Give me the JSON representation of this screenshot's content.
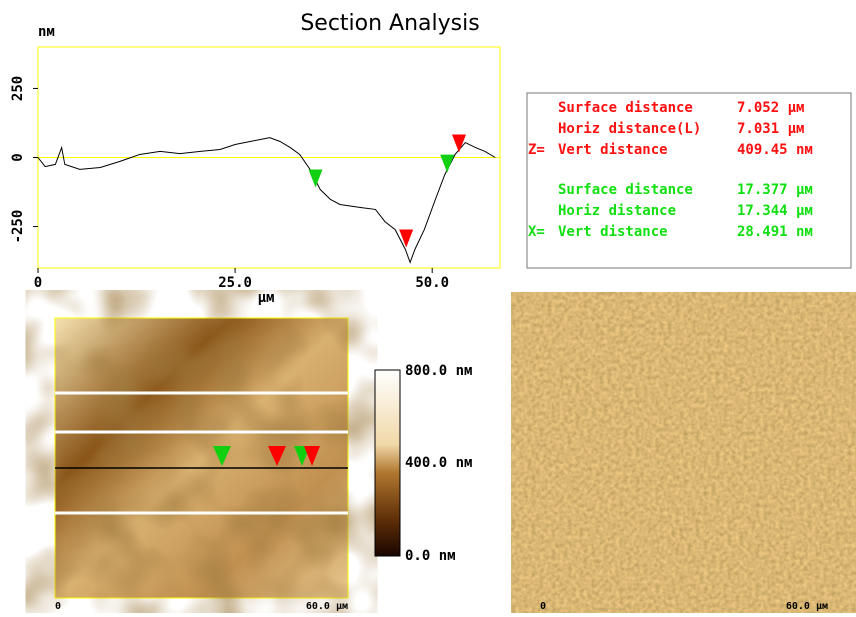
{
  "chart_data": {
    "type": "line",
    "title": "Section Analysis",
    "y_label": "nм",
    "x_label": "µм",
    "x": [
      0,
      0.9,
      2.2,
      3,
      3.4,
      5.3,
      7.9,
      10.4,
      12.9,
      15.5,
      18,
      20.6,
      23.1,
      25,
      26.9,
      28.2,
      29.4,
      30.7,
      32,
      33.2,
      34.5,
      35.8,
      37.1,
      38.3,
      40.9,
      42.8,
      44,
      45.3,
      46.6,
      47.2,
      47.8,
      49,
      50.4,
      51.6,
      52.9,
      54.2,
      55.5,
      56.7,
      58
    ],
    "series": [
      {
        "color": "#000000",
        "values": [
          0,
          -33,
          -25,
          36,
          -25,
          -43,
          -36,
          -14,
          11,
          22,
          14,
          22,
          29,
          47,
          58,
          65,
          72,
          58,
          36,
          11,
          -43,
          -116,
          -152,
          -170,
          -181,
          -188,
          -232,
          -261,
          -333,
          -380,
          -333,
          -261,
          -152,
          -62,
          11,
          54,
          36,
          22,
          0
        ]
      }
    ],
    "xlim": [
      0,
      58.6
    ],
    "ylim": [
      -400,
      400
    ],
    "xticks": [
      0,
      {
        "value": 25,
        "label": "25.0"
      },
      {
        "value": 50,
        "label": "50.0"
      }
    ],
    "yticks": [
      -250,
      0,
      250
    ],
    "zero_line_color": "#ffff00",
    "cursors": [
      {
        "color": "#10d010",
        "x": 35.2
      },
      {
        "color": "#ff0000",
        "x": 46.7
      },
      {
        "color": "#10d010",
        "x": 51.9
      },
      {
        "color": "#ff0000",
        "x": 53.4
      }
    ]
  },
  "measurements": {
    "z": {
      "prefix": "Z=",
      "rows": [
        [
          "Surface distance",
          "7.052 µм"
        ],
        [
          "Horiz distance(L)",
          "7.031 µм"
        ],
        [
          "Vert distance",
          "409.45 nм"
        ]
      ]
    },
    "x": {
      "prefix": "X=",
      "rows": [
        [
          "Surface distance",
          "17.377 µм"
        ],
        [
          "Horiz distance",
          "17.344 µм"
        ],
        [
          "Vert distance",
          "28.491 nм"
        ]
      ]
    }
  },
  "height_image": {
    "x_start": "0",
    "x_end": "60.0 µм",
    "colorbar": [
      "800.0 nм",
      "400.0 nм",
      "0.0 nм"
    ]
  },
  "deflection_image": {
    "x_start": "0",
    "x_end": "60.0 µм"
  }
}
